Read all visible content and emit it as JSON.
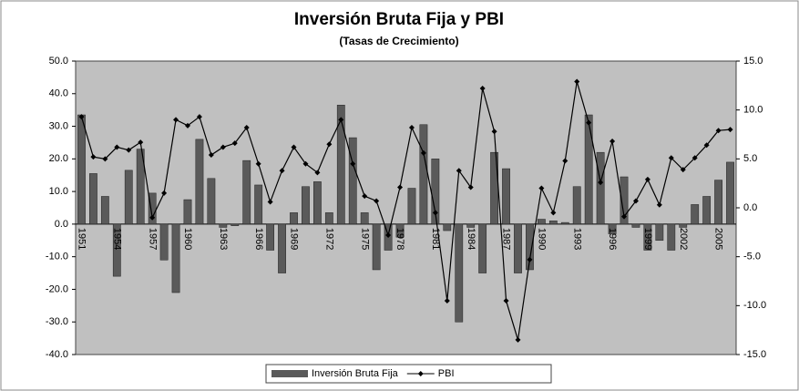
{
  "chart_data": {
    "type": "bar_line",
    "title": "Inversión Bruta Fija y PBI",
    "subtitle": "(Tasas de Crecimiento)",
    "categories": [
      "1951",
      null,
      null,
      "1954",
      null,
      null,
      "1957",
      null,
      null,
      "1960",
      null,
      null,
      "1963",
      null,
      null,
      "1966",
      null,
      null,
      "1969",
      null,
      null,
      "1972",
      null,
      null,
      "1975",
      null,
      null,
      "1978",
      null,
      null,
      "1981",
      null,
      null,
      "1984",
      null,
      null,
      "1987",
      null,
      null,
      "1990",
      null,
      null,
      "1993",
      null,
      null,
      "1996",
      null,
      null,
      "1999",
      null,
      null,
      "2002",
      null,
      null,
      "2005",
      null
    ],
    "series": [
      {
        "name": "Inversión Bruta Fija",
        "color": "#5a5a5a",
        "type": "bar",
        "values": [
          33.5,
          15.5,
          8.5,
          -16,
          16.5,
          23,
          9.5,
          -11,
          -21,
          7.5,
          26,
          14,
          -1,
          -0.5,
          19.5,
          12,
          -8,
          -15,
          3.5,
          11.5,
          13,
          3.5,
          36.5,
          26.5,
          3.5,
          -14,
          -8,
          -4,
          11,
          30.5,
          20,
          -2,
          -30,
          -1,
          -15,
          22,
          17,
          -15,
          -14,
          1.5,
          1,
          0.5,
          11.5,
          33.5,
          22,
          -3,
          14.5,
          -1,
          -8,
          -5,
          -8,
          -1,
          6,
          8.5,
          13.5,
          19
        ]
      },
      {
        "name": "PBI",
        "color": "#000000",
        "type": "line",
        "axis": "y2",
        "values": [
          9.3,
          5.2,
          5,
          6.2,
          5.9,
          6.7,
          -1,
          1.5,
          9,
          8.4,
          9.3,
          5.4,
          6.2,
          6.6,
          8.2,
          4.5,
          0.6,
          3.8,
          6.2,
          4.5,
          3.6,
          6.5,
          9,
          4.5,
          1.2,
          0.7,
          -2.8,
          2.1,
          8.2,
          5.6,
          -0.5,
          -9.5,
          3.8,
          2.1,
          12.2,
          7.8,
          -9.5,
          -13.5,
          -5.3,
          2,
          -0.5,
          4.8,
          12.9,
          8.7,
          2.6,
          6.8,
          -0.9,
          0.7,
          2.9,
          0.3,
          5.1,
          3.9,
          5.1,
          6.4,
          7.9,
          8
        ]
      }
    ],
    "ylim": [
      -40,
      50
    ],
    "yticks": [
      {
        "value": -40,
        "label": "-40.0"
      },
      {
        "value": -30,
        "label": "-30.0"
      },
      {
        "value": -20,
        "label": "-20.0"
      },
      {
        "value": -10,
        "label": "-10.0"
      },
      {
        "value": 0,
        "label": "0.0"
      },
      {
        "value": 10,
        "label": "10.0"
      },
      {
        "value": 20,
        "label": "20.0"
      },
      {
        "value": 30,
        "label": "30.0"
      },
      {
        "value": 40,
        "label": "40.0"
      },
      {
        "value": 50,
        "label": "50.0"
      }
    ],
    "y2lim": [
      -15,
      15
    ],
    "y2ticks": [
      {
        "value": -15,
        "label": "-15.0"
      },
      {
        "value": -10,
        "label": "-10.0"
      },
      {
        "value": -5,
        "label": "-5.0"
      },
      {
        "value": 0,
        "label": "0.0"
      },
      {
        "value": 5,
        "label": "5.0"
      },
      {
        "value": 10,
        "label": "10.0"
      },
      {
        "value": 15,
        "label": "15.0"
      }
    ],
    "legend": "bottom"
  }
}
